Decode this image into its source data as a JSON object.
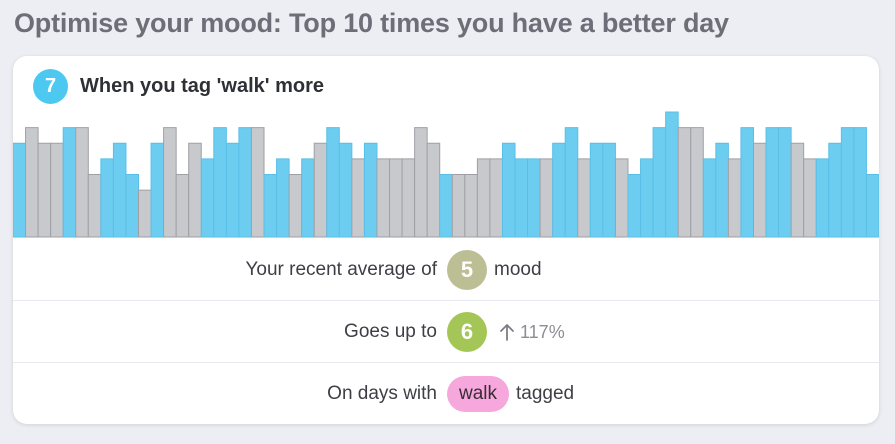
{
  "page": {
    "title": "Optimise your mood: Top 10 times you have a better day"
  },
  "card": {
    "rank": "7",
    "title": "When you tag 'walk' more",
    "colors": {
      "rank_badge": "#4dc9f1",
      "tagged_bar": "#6dcdf0",
      "untagged_bar": "#c8c9cd",
      "average_mood": "#bcbf94",
      "improved_mood": "#a3c657",
      "tag_pill": "#f6a8dd"
    },
    "stats": [
      {
        "label": "Your recent average of",
        "mood": "5",
        "mood_color": "#bcbf94",
        "after": "mood"
      },
      {
        "label": "Goes up to",
        "mood": "6",
        "mood_color": "#a3c657",
        "change": "117%",
        "change_icon": "arrow-up-icon"
      },
      {
        "label": "On days with",
        "tag": "walk",
        "after": "tagged"
      }
    ]
  },
  "chart_data": {
    "type": "bar",
    "ylim": [
      0,
      8
    ],
    "legend": "none",
    "grid": false,
    "values": [
      6,
      7,
      6,
      6,
      7,
      7,
      4,
      5,
      6,
      4,
      3,
      6,
      7,
      4,
      6,
      5,
      7,
      6,
      7,
      7,
      4,
      5,
      4,
      5,
      6,
      7,
      6,
      5,
      6,
      5,
      5,
      5,
      7,
      6,
      4,
      4,
      4,
      5,
      5,
      6,
      5,
      5,
      5,
      6,
      7,
      5,
      6,
      6,
      5,
      4,
      5,
      7,
      8,
      7,
      7,
      5,
      6,
      5,
      7,
      6,
      7,
      7,
      6,
      5,
      5,
      6,
      7,
      7,
      4
    ],
    "tagged": [
      1,
      0,
      0,
      0,
      1,
      0,
      0,
      1,
      1,
      1,
      0,
      1,
      0,
      0,
      0,
      1,
      1,
      1,
      1,
      0,
      1,
      1,
      0,
      1,
      0,
      1,
      1,
      0,
      1,
      0,
      0,
      0,
      0,
      0,
      1,
      0,
      0,
      0,
      0,
      1,
      1,
      1,
      0,
      1,
      1,
      0,
      1,
      1,
      0,
      1,
      1,
      1,
      1,
      0,
      0,
      1,
      1,
      0,
      1,
      0,
      1,
      1,
      0,
      0,
      1,
      1,
      1,
      1,
      1
    ]
  }
}
